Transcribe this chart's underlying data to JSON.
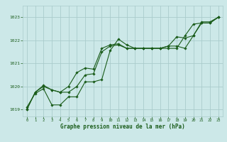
{
  "bg_color": "#cce8e8",
  "grid_color": "#aacccc",
  "line_color": "#1a5c1a",
  "marker_color": "#1a5c1a",
  "xlabel": "Graphe pression niveau de la mer (hPa)",
  "xlim": [
    -0.5,
    23.5
  ],
  "ylim": [
    1018.7,
    1023.5
  ],
  "yticks": [
    1019,
    1020,
    1021,
    1022,
    1023
  ],
  "xticks": [
    0,
    1,
    2,
    3,
    4,
    5,
    6,
    7,
    8,
    9,
    10,
    11,
    12,
    13,
    14,
    15,
    16,
    17,
    18,
    19,
    20,
    21,
    22,
    23
  ],
  "series": [
    [
      1019.1,
      1019.7,
      1019.9,
      1019.2,
      1019.2,
      1019.55,
      1019.55,
      1020.2,
      1020.2,
      1020.3,
      1021.55,
      1022.05,
      1021.8,
      1021.65,
      1021.65,
      1021.65,
      1021.65,
      1021.65,
      1021.65,
      1022.2,
      1022.7,
      1022.75,
      1022.75,
      1023.0
    ],
    [
      1019.0,
      1019.75,
      1020.05,
      1019.85,
      1019.75,
      1020.0,
      1020.6,
      1020.8,
      1020.75,
      1021.65,
      1021.8,
      1021.85,
      1021.65,
      1021.65,
      1021.65,
      1021.65,
      1021.65,
      1021.75,
      1021.75,
      1021.65,
      1022.2,
      1022.75,
      1022.75,
      1023.0
    ],
    [
      1019.0,
      1019.75,
      1020.0,
      1019.85,
      1019.75,
      1019.75,
      1020.0,
      1020.5,
      1020.55,
      1021.5,
      1021.75,
      1021.8,
      1021.65,
      1021.65,
      1021.65,
      1021.65,
      1021.65,
      1021.75,
      1022.15,
      1022.1,
      1022.2,
      1022.8,
      1022.8,
      1023.0
    ]
  ]
}
